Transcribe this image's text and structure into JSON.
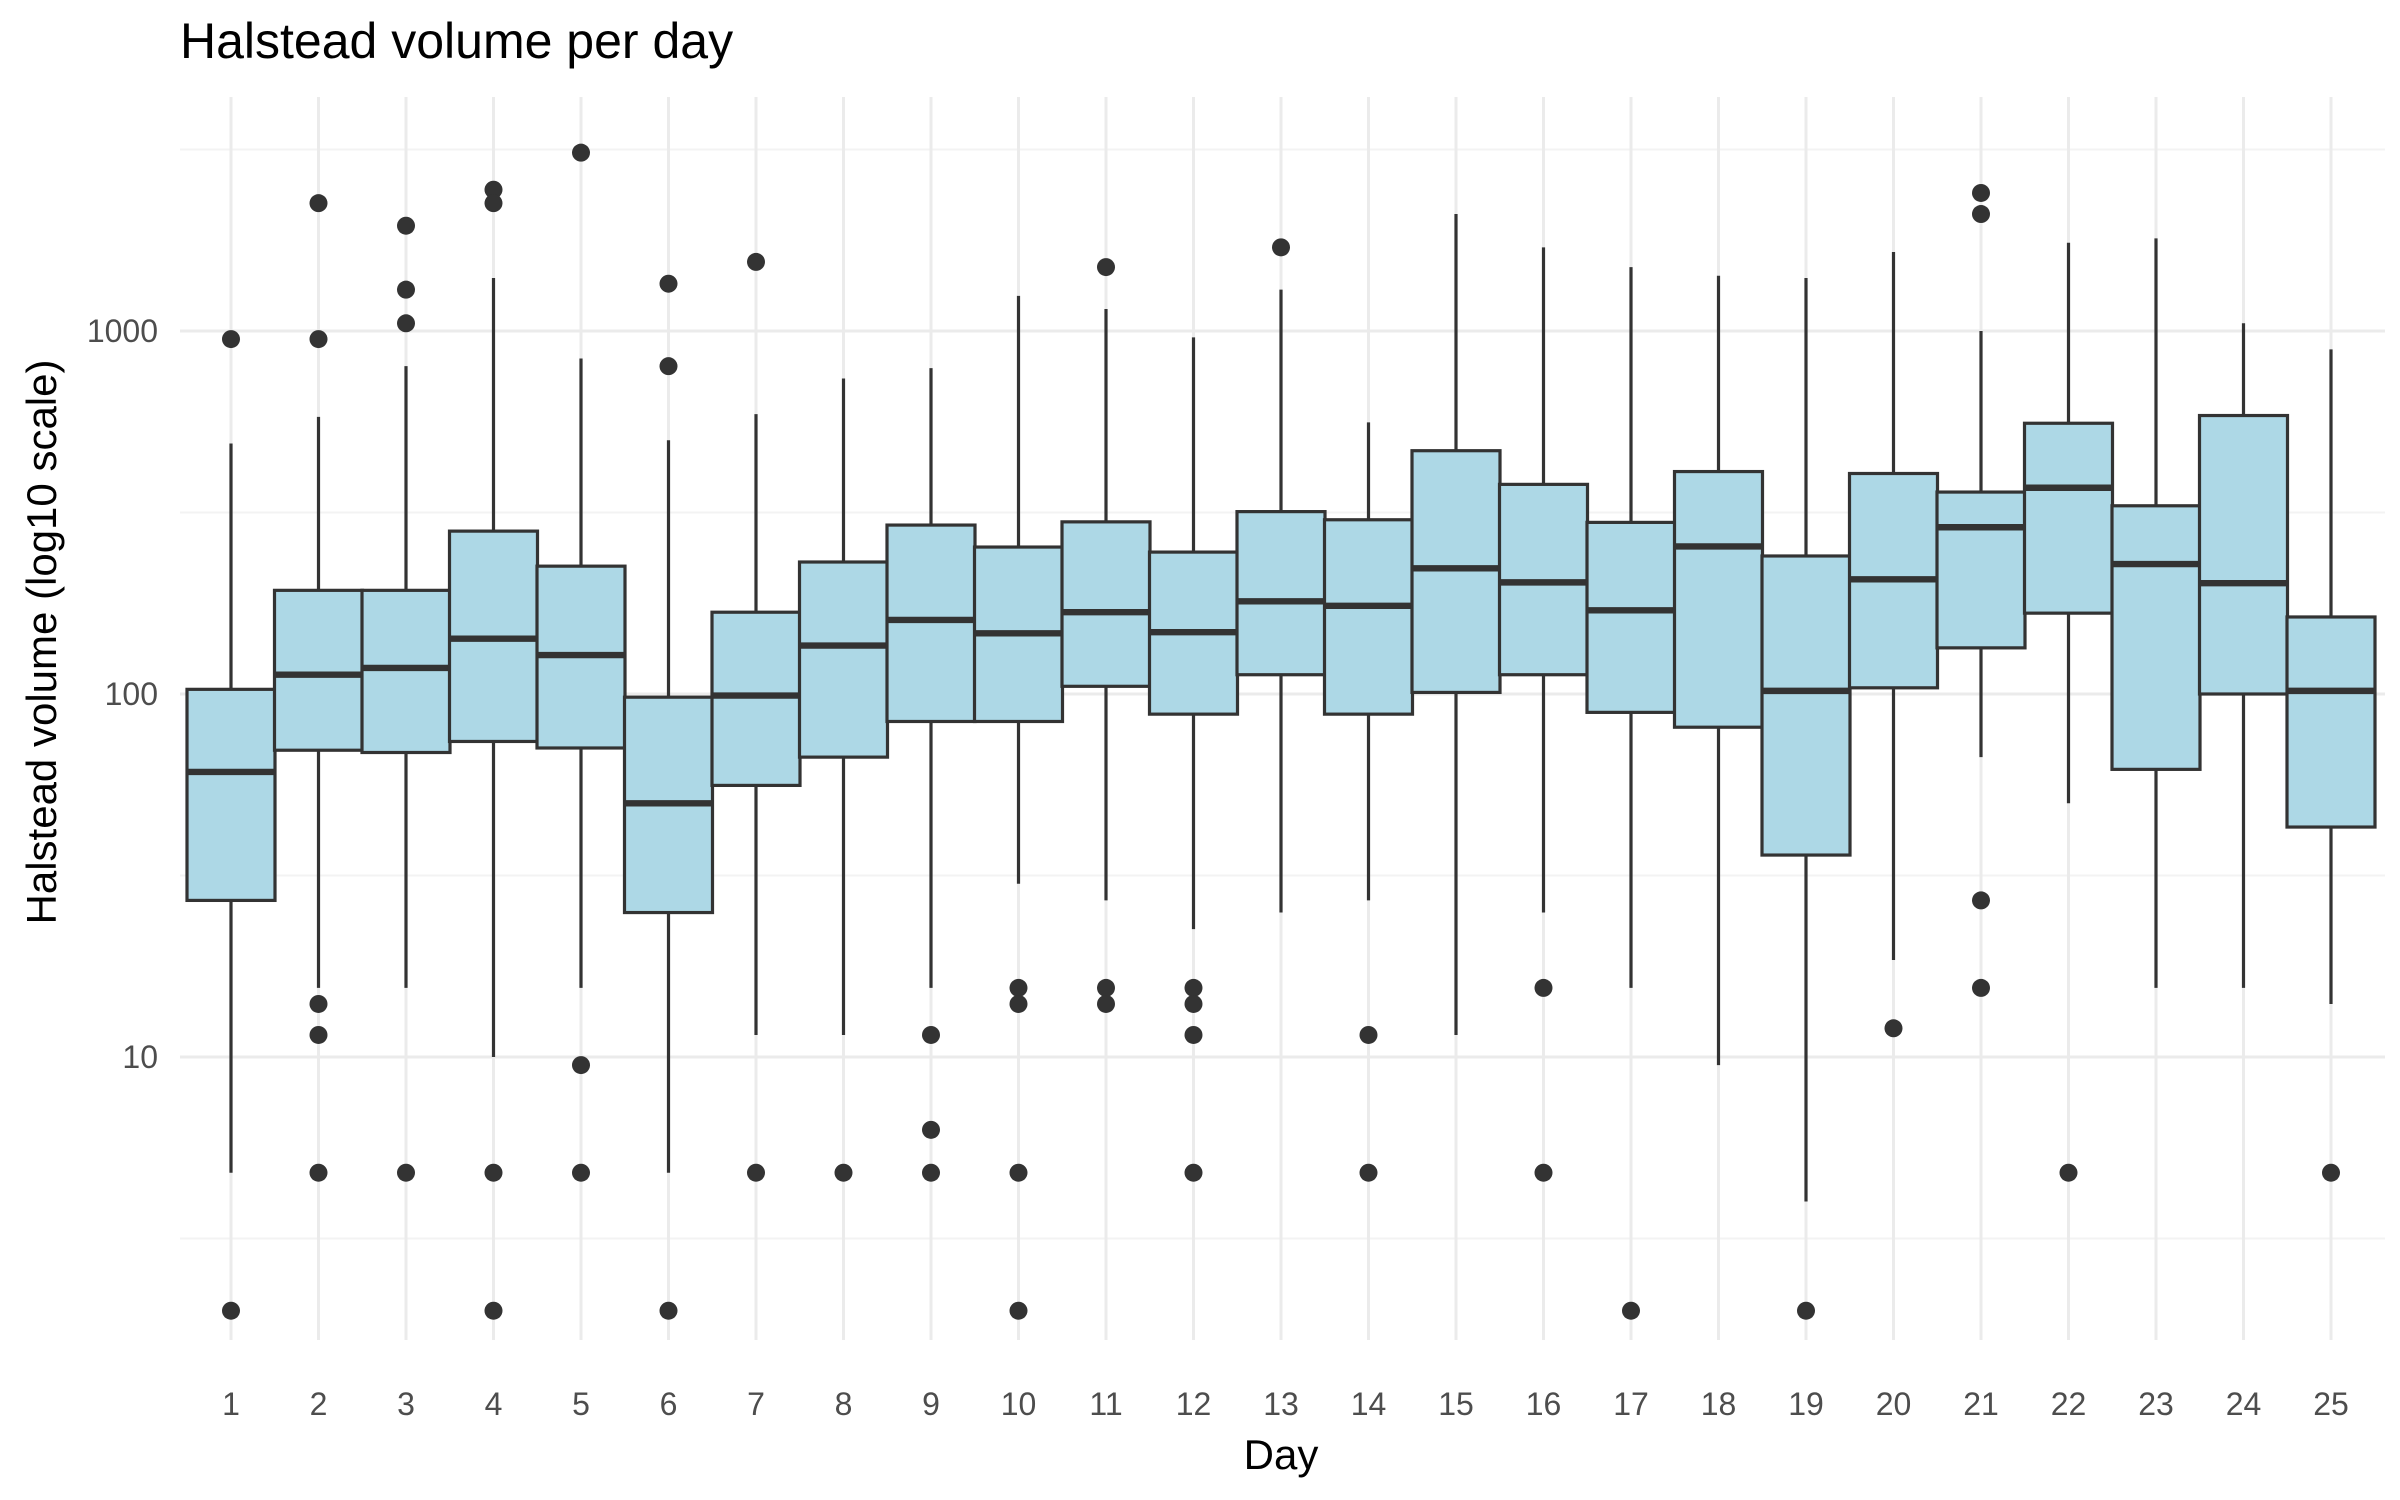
{
  "chart_data": {
    "type": "box",
    "title": "Halstead volume per day",
    "xlabel": "Day",
    "ylabel": "Halstead volume (log10 scale)",
    "y_scale": "log10",
    "ylim": [
      1.7,
      4800
    ],
    "y_ticks": [
      10,
      100,
      1000
    ],
    "y_tick_labels": [
      "10",
      "100",
      "1000"
    ],
    "grid": true,
    "box_fill": "#add8e6",
    "line_color": "#333333",
    "categories": [
      "1",
      "2",
      "3",
      "4",
      "5",
      "6",
      "7",
      "8",
      "9",
      "10",
      "11",
      "12",
      "13",
      "14",
      "15",
      "16",
      "17",
      "18",
      "19",
      "20",
      "21",
      "22",
      "23",
      "24",
      "25"
    ],
    "boxes": [
      {
        "day": "1",
        "lower_whisker": 4.8,
        "q1": 27,
        "median": 61,
        "q3": 103,
        "upper_whisker": 490,
        "outliers": [
          950,
          2
        ]
      },
      {
        "day": "2",
        "lower_whisker": 15.5,
        "q1": 70,
        "median": 113,
        "q3": 193,
        "upper_whisker": 580,
        "outliers": [
          2250,
          950,
          14,
          11.5,
          4.8
        ]
      },
      {
        "day": "3",
        "lower_whisker": 15.5,
        "q1": 69,
        "median": 118,
        "q3": 193,
        "upper_whisker": 800,
        "outliers": [
          1950,
          1300,
          1050,
          4.8
        ]
      },
      {
        "day": "4",
        "lower_whisker": 10,
        "q1": 74,
        "median": 142,
        "q3": 281,
        "upper_whisker": 1400,
        "outliers": [
          2450,
          2250,
          4.8,
          2
        ]
      },
      {
        "day": "5",
        "lower_whisker": 15.5,
        "q1": 71,
        "median": 128,
        "q3": 225,
        "upper_whisker": 840,
        "outliers": [
          3100,
          9.5,
          4.8
        ]
      },
      {
        "day": "6",
        "lower_whisker": 4.8,
        "q1": 25,
        "median": 50,
        "q3": 98,
        "upper_whisker": 500,
        "outliers": [
          1350,
          800,
          2
        ]
      },
      {
        "day": "7",
        "lower_whisker": 11.5,
        "q1": 56,
        "median": 99,
        "q3": 168,
        "upper_whisker": 590,
        "outliers": [
          1550,
          4.8
        ]
      },
      {
        "day": "8",
        "lower_whisker": 11.5,
        "q1": 67,
        "median": 136,
        "q3": 231,
        "upper_whisker": 740,
        "outliers": [
          4.8
        ]
      },
      {
        "day": "9",
        "lower_whisker": 15.5,
        "q1": 84,
        "median": 160,
        "q3": 292,
        "upper_whisker": 790,
        "outliers": [
          11.5,
          6.3,
          4.8
        ]
      },
      {
        "day": "10",
        "lower_whisker": 30,
        "q1": 84,
        "median": 147,
        "q3": 254,
        "upper_whisker": 1250,
        "outliers": [
          15.5,
          14,
          4.8,
          2
        ]
      },
      {
        "day": "11",
        "lower_whisker": 27,
        "q1": 105,
        "median": 168,
        "q3": 298,
        "upper_whisker": 1150,
        "outliers": [
          1500,
          15.5,
          14
        ]
      },
      {
        "day": "12",
        "lower_whisker": 22.5,
        "q1": 88,
        "median": 148,
        "q3": 246,
        "upper_whisker": 960,
        "outliers": [
          15.5,
          14,
          11.5,
          4.8
        ]
      },
      {
        "day": "13",
        "lower_whisker": 25,
        "q1": 113,
        "median": 180,
        "q3": 318,
        "upper_whisker": 1300,
        "outliers": [
          1700
        ]
      },
      {
        "day": "14",
        "lower_whisker": 27,
        "q1": 88,
        "median": 175,
        "q3": 302,
        "upper_whisker": 560,
        "outliers": [
          11.5,
          4.8
        ]
      },
      {
        "day": "15",
        "lower_whisker": 11.5,
        "q1": 101,
        "median": 222,
        "q3": 468,
        "upper_whisker": 2100,
        "outliers": []
      },
      {
        "day": "16",
        "lower_whisker": 25,
        "q1": 113,
        "median": 203,
        "q3": 378,
        "upper_whisker": 1700,
        "outliers": [
          15.5,
          4.8
        ]
      },
      {
        "day": "17",
        "lower_whisker": 15.5,
        "q1": 89,
        "median": 170,
        "q3": 297,
        "upper_whisker": 1500,
        "outliers": [
          2
        ]
      },
      {
        "day": "18",
        "lower_whisker": 9.5,
        "q1": 81,
        "median": 255,
        "q3": 410,
        "upper_whisker": 1420,
        "outliers": []
      },
      {
        "day": "19",
        "lower_whisker": 4,
        "q1": 36,
        "median": 102,
        "q3": 240,
        "upper_whisker": 1400,
        "outliers": [
          2
        ]
      },
      {
        "day": "20",
        "lower_whisker": 18.5,
        "q1": 104,
        "median": 207,
        "q3": 405,
        "upper_whisker": 1650,
        "outliers": [
          12
        ]
      },
      {
        "day": "21",
        "lower_whisker": 67,
        "q1": 134,
        "median": 288,
        "q3": 360,
        "upper_whisker": 1000,
        "outliers": [
          2400,
          2100,
          27,
          15.5
        ]
      },
      {
        "day": "22",
        "lower_whisker": 50,
        "q1": 167,
        "median": 370,
        "q3": 557,
        "upper_whisker": 1750,
        "outliers": [
          4.8
        ]
      },
      {
        "day": "23",
        "lower_whisker": 15.5,
        "q1": 62,
        "median": 228,
        "q3": 330,
        "upper_whisker": 1800,
        "outliers": []
      },
      {
        "day": "24",
        "lower_whisker": 15.5,
        "q1": 100,
        "median": 202,
        "q3": 585,
        "upper_whisker": 1050,
        "outliers": []
      },
      {
        "day": "25",
        "lower_whisker": 14,
        "q1": 43,
        "median": 102,
        "q3": 163,
        "upper_whisker": 890,
        "outliers": [
          4.8
        ]
      }
    ]
  }
}
